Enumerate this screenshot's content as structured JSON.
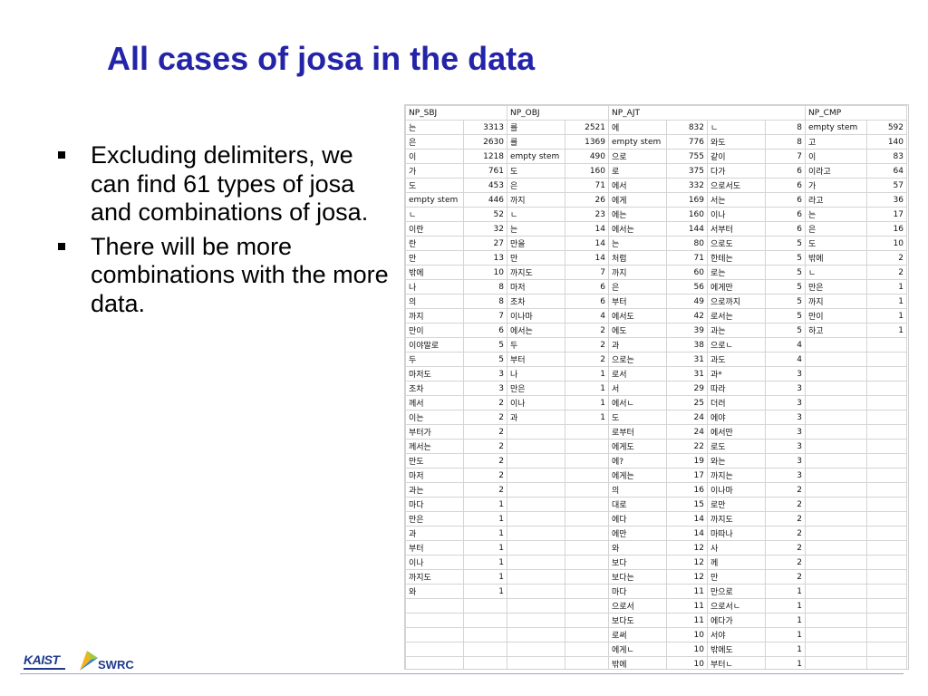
{
  "slide": {
    "title": "All cases of josa in the data",
    "bullets": [
      "Excluding delimiters, we can find 61 types of josa and combinations of josa.",
      "There will be more combinations with the more data."
    ],
    "logos": [
      "KAIST",
      "SWRC"
    ]
  },
  "sheet": {
    "headers": [
      "NP_SBJ",
      "NP_OBJ",
      "NP_AJT",
      "NP_CMP"
    ],
    "np_sbj": [
      [
        "는",
        "3313"
      ],
      [
        "은",
        "2630"
      ],
      [
        "이",
        "1218"
      ],
      [
        "가",
        "761"
      ],
      [
        "도",
        "453"
      ],
      [
        "empty stem",
        "446"
      ],
      [
        "ㄴ",
        "52"
      ],
      [
        "이란",
        "32"
      ],
      [
        "란",
        "27"
      ],
      [
        "만",
        "13"
      ],
      [
        "밖에",
        "10"
      ],
      [
        "나",
        "8"
      ],
      [
        "의",
        "8"
      ],
      [
        "까지",
        "7"
      ],
      [
        "만이",
        "6"
      ],
      [
        "이야말로",
        "5"
      ],
      [
        "두",
        "5"
      ],
      [
        "마저도",
        "3"
      ],
      [
        "조차",
        "3"
      ],
      [
        "께서",
        "2"
      ],
      [
        "이는",
        "2"
      ],
      [
        "부터가",
        "2"
      ],
      [
        "께서는",
        "2"
      ],
      [
        "만도",
        "2"
      ],
      [
        "마저",
        "2"
      ],
      [
        "과는",
        "2"
      ],
      [
        "마다",
        "1"
      ],
      [
        "만은",
        "1"
      ],
      [
        "과",
        "1"
      ],
      [
        "부터",
        "1"
      ],
      [
        "이나",
        "1"
      ],
      [
        "까지도",
        "1"
      ],
      [
        "와",
        "1"
      ]
    ],
    "np_obj": [
      [
        "를",
        "2521"
      ],
      [
        "를",
        "1369"
      ],
      [
        "empty stem",
        "490"
      ],
      [
        "도",
        "160"
      ],
      [
        "은",
        "71"
      ],
      [
        "까지",
        "26"
      ],
      [
        "ㄴ",
        "23"
      ],
      [
        "는",
        "14"
      ],
      [
        "만을",
        "14"
      ],
      [
        "만",
        "14"
      ],
      [
        "까지도",
        "7"
      ],
      [
        "마저",
        "6"
      ],
      [
        "조차",
        "6"
      ],
      [
        "이나마",
        "4"
      ],
      [
        "에서는",
        "2"
      ],
      [
        "두",
        "2"
      ],
      [
        "부터",
        "2"
      ],
      [
        "나",
        "1"
      ],
      [
        "만은",
        "1"
      ],
      [
        "이나",
        "1"
      ],
      [
        "과",
        "1"
      ]
    ],
    "np_ajt_1": [
      [
        "에",
        "832"
      ],
      [
        "empty stem",
        "776"
      ],
      [
        "으로",
        "755"
      ],
      [
        "로",
        "375"
      ],
      [
        "에서",
        "332"
      ],
      [
        "에게",
        "169"
      ],
      [
        "에는",
        "160"
      ],
      [
        "에서는",
        "144"
      ],
      [
        "는",
        "80"
      ],
      [
        "처럼",
        "71"
      ],
      [
        "까지",
        "60"
      ],
      [
        "은",
        "56"
      ],
      [
        "부터",
        "49"
      ],
      [
        "에서도",
        "42"
      ],
      [
        "에도",
        "39"
      ],
      [
        "과",
        "38"
      ],
      [
        "으로는",
        "31"
      ],
      [
        "로서",
        "31"
      ],
      [
        "서",
        "29"
      ],
      [
        "에서ㄴ",
        "25"
      ],
      [
        "도",
        "24"
      ],
      [
        "로부터",
        "24"
      ],
      [
        "에게도",
        "22"
      ],
      [
        "에?",
        "19"
      ],
      [
        "에게는",
        "17"
      ],
      [
        "의",
        "16"
      ],
      [
        "대로",
        "15"
      ],
      [
        "에다",
        "14"
      ],
      [
        "에만",
        "14"
      ],
      [
        "와",
        "12"
      ],
      [
        "보다",
        "12"
      ],
      [
        "보다는",
        "12"
      ],
      [
        "마다",
        "11"
      ],
      [
        "으로서",
        "11"
      ],
      [
        "보다도",
        "11"
      ],
      [
        "로써",
        "10"
      ],
      [
        "에게ㄴ",
        "10"
      ],
      [
        "밖에",
        "10"
      ]
    ],
    "np_ajt_2": [
      [
        "ㄴ",
        "8"
      ],
      [
        "와도",
        "8"
      ],
      [
        "같이",
        "7"
      ],
      [
        "다가",
        "6"
      ],
      [
        "으로서도",
        "6"
      ],
      [
        "서는",
        "6"
      ],
      [
        "이나",
        "6"
      ],
      [
        "서부터",
        "6"
      ],
      [
        "으로도",
        "5"
      ],
      [
        "한테는",
        "5"
      ],
      [
        "로는",
        "5"
      ],
      [
        "에게만",
        "5"
      ],
      [
        "으로까지",
        "5"
      ],
      [
        "로서는",
        "5"
      ],
      [
        "과는",
        "5"
      ],
      [
        "으로ㄴ",
        "4"
      ],
      [
        "과도",
        "4"
      ],
      [
        "과*",
        "3"
      ],
      [
        "따라",
        "3"
      ],
      [
        "더러",
        "3"
      ],
      [
        "에야",
        "3"
      ],
      [
        "에서만",
        "3"
      ],
      [
        "로도",
        "3"
      ],
      [
        "와는",
        "3"
      ],
      [
        "까지는",
        "3"
      ],
      [
        "이나마",
        "2"
      ],
      [
        "로만",
        "2"
      ],
      [
        "까지도",
        "2"
      ],
      [
        "마따나",
        "2"
      ],
      [
        "사",
        "2"
      ],
      [
        "께",
        "2"
      ],
      [
        "만",
        "2"
      ],
      [
        "만으로",
        "1"
      ],
      [
        "으로서ㄴ",
        "1"
      ],
      [
        "에다가",
        "1"
      ],
      [
        "서야",
        "1"
      ],
      [
        "밖에도",
        "1"
      ],
      [
        "부터ㄴ",
        "1"
      ]
    ],
    "np_cmp": [
      [
        "empty stem",
        "592"
      ],
      [
        "고",
        "140"
      ],
      [
        "이",
        "83"
      ],
      [
        "이라고",
        "64"
      ],
      [
        "가",
        "57"
      ],
      [
        "라고",
        "36"
      ],
      [
        "는",
        "17"
      ],
      [
        "은",
        "16"
      ],
      [
        "도",
        "10"
      ],
      [
        "밖에",
        "2"
      ],
      [
        "ㄴ",
        "2"
      ],
      [
        "만은",
        "1"
      ],
      [
        "까지",
        "1"
      ],
      [
        "만이",
        "1"
      ],
      [
        "하고",
        "1"
      ]
    ]
  }
}
